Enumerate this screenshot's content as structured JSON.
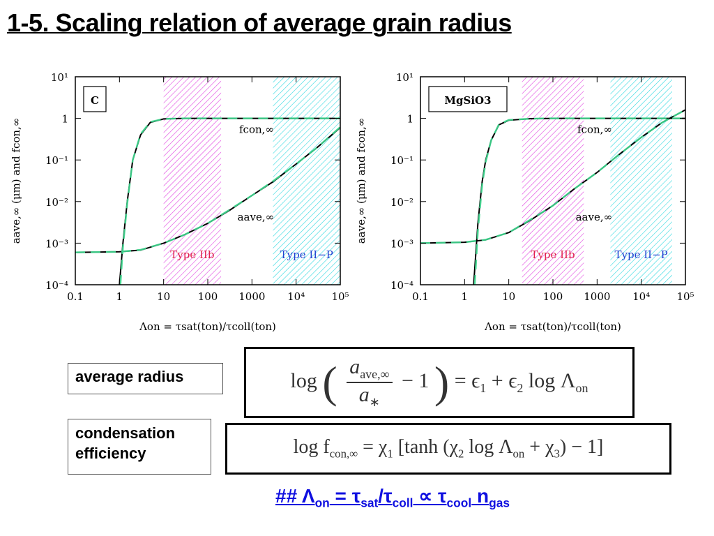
{
  "title": "1-5. Scaling relation of average grain radius",
  "chart_data": [
    {
      "type": "line",
      "label": "C",
      "xlabel": "Λon = τsat(ton)/τcoll(ton)",
      "ylabel": "aave,∞ (μm) and fcon,∞",
      "xlim": [
        0.1,
        100000
      ],
      "ylim": [
        0.0001,
        10
      ],
      "log_x": true,
      "log_y": true,
      "xticks": [
        0.1,
        1,
        10,
        100,
        1000,
        {
          "value": 10000,
          "label": "10⁴"
        },
        {
          "value": 100000,
          "label": "10⁵"
        }
      ],
      "yticks": [
        {
          "value": 0.0001,
          "label": "10⁻⁴"
        },
        {
          "value": 0.001,
          "label": "10⁻³"
        },
        {
          "value": 0.01,
          "label": "10⁻²"
        },
        {
          "value": 0.1,
          "label": "10⁻¹"
        },
        1,
        {
          "value": 10,
          "label": "10¹"
        }
      ],
      "bands": [
        {
          "label": "Type IIb",
          "x": [
            10,
            200
          ],
          "color": "#e040e0",
          "label_color": "#e0204a"
        },
        {
          "label": "Type II−P",
          "x": [
            3000,
            100000
          ],
          "color": "#30d8e0",
          "label_color": "#2040d0"
        }
      ],
      "series": [
        {
          "name": "fcon,∞",
          "color": "#000000",
          "x": [
            1,
            1.2,
            1.5,
            2,
            3,
            5,
            10,
            30,
            100,
            1000,
            100000
          ],
          "values": [
            0.0001,
            0.001,
            0.01,
            0.1,
            0.4,
            0.8,
            0.97,
            1,
            1,
            1,
            1
          ]
        },
        {
          "name": "aave,∞",
          "color": "#000000",
          "x": [
            0.1,
            1,
            3,
            10,
            30,
            100,
            300,
            1000,
            3000,
            10000,
            30000,
            100000
          ],
          "values": [
            0.0006,
            0.00062,
            0.00068,
            0.001,
            0.0016,
            0.003,
            0.006,
            0.014,
            0.03,
            0.08,
            0.2,
            0.6
          ]
        },
        {
          "color": "#40d890",
          "dash": true,
          "x": [
            1.05,
            1.2,
            1.5,
            2,
            3,
            5,
            10,
            30,
            100,
            1000,
            100000
          ],
          "values": [
            0.0001,
            0.0008,
            0.009,
            0.1,
            0.42,
            0.82,
            0.97,
            1,
            1,
            1,
            1
          ]
        },
        {
          "color": "#40d890",
          "dash": true,
          "x": [
            0.1,
            1,
            3,
            10,
            30,
            100,
            300,
            1000,
            3000,
            10000,
            30000,
            100000
          ],
          "values": [
            0.0006,
            0.00062,
            0.00069,
            0.001,
            0.0016,
            0.003,
            0.0062,
            0.014,
            0.031,
            0.08,
            0.2,
            0.62
          ]
        }
      ]
    },
    {
      "type": "line",
      "label": "MgSiO3",
      "xlabel": "Λon = τsat(ton)/τcoll(ton)",
      "ylabel": "aave,∞ (μm) and fcon,∞",
      "xlim": [
        0.1,
        100000
      ],
      "ylim": [
        0.0001,
        10
      ],
      "log_x": true,
      "log_y": true,
      "xticks": [
        0.1,
        1,
        10,
        100,
        1000,
        {
          "value": 10000,
          "label": "10⁴"
        },
        {
          "value": 100000,
          "label": "10⁵"
        }
      ],
      "yticks": [
        {
          "value": 0.0001,
          "label": "10⁻⁴"
        },
        {
          "value": 0.001,
          "label": "10⁻³"
        },
        {
          "value": 0.01,
          "label": "10⁻²"
        },
        {
          "value": 0.1,
          "label": "10⁻¹"
        },
        1,
        {
          "value": 10,
          "label": "10¹"
        }
      ],
      "bands": [
        {
          "label": "Type IIb",
          "x": [
            20,
            500
          ],
          "color": "#e040e0",
          "label_color": "#e0204a"
        },
        {
          "label": "Type II−P",
          "x": [
            2000,
            50000
          ],
          "color": "#30d8e0",
          "label_color": "#2040d0"
        }
      ],
      "series": [
        {
          "name": "fcon,∞",
          "color": "#000000",
          "x": [
            1.6,
            2,
            2.5,
            3,
            4,
            6,
            10,
            30,
            100,
            100000
          ],
          "values": [
            0.0001,
            0.003,
            0.03,
            0.1,
            0.3,
            0.7,
            0.9,
            0.98,
            1,
            1
          ]
        },
        {
          "name": "aave,∞",
          "color": "#000000",
          "x": [
            0.1,
            1,
            3,
            10,
            30,
            100,
            300,
            1000,
            3000,
            10000,
            30000,
            100000
          ],
          "values": [
            0.001,
            0.00105,
            0.0012,
            0.0018,
            0.0035,
            0.008,
            0.02,
            0.05,
            0.13,
            0.35,
            0.8,
            1.6
          ]
        },
        {
          "color": "#40d890",
          "dash": true,
          "x": [
            1.7,
            2,
            2.5,
            3,
            4,
            6,
            10,
            30,
            100,
            100000
          ],
          "values": [
            0.0001,
            0.002,
            0.025,
            0.09,
            0.3,
            0.72,
            0.92,
            0.98,
            1,
            1
          ]
        },
        {
          "color": "#40d890",
          "dash": true,
          "x": [
            0.1,
            1,
            3,
            10,
            30,
            100,
            300,
            1000,
            3000,
            10000,
            30000,
            100000
          ],
          "values": [
            0.001,
            0.00105,
            0.00121,
            0.0018,
            0.0036,
            0.008,
            0.02,
            0.05,
            0.13,
            0.35,
            0.8,
            1.6
          ]
        }
      ]
    }
  ],
  "labels": {
    "average_radius": "average radius",
    "condensation_efficiency": [
      "condensation",
      "efficiency"
    ]
  },
  "equation_1": {
    "fn": "log",
    "num": "a",
    "num_sub": "ave,∞",
    "den": "a",
    "den_sub": "∗",
    "rest": "− 1",
    "rhs": [
      "= ϵ",
      "1",
      " + ϵ",
      "2",
      " log Λ",
      "on"
    ]
  },
  "equation_2": {
    "parts": [
      "log f",
      "con,∞",
      " = χ",
      "1",
      " [tanh (χ",
      "2",
      " log Λ",
      "on",
      " + χ",
      "3",
      ") − 1]"
    ]
  },
  "footer": [
    "## Λ",
    "on",
    " = τ",
    "sat",
    "/τ",
    "coll",
    " ∝ τ",
    "cool",
    " n",
    "gas"
  ]
}
